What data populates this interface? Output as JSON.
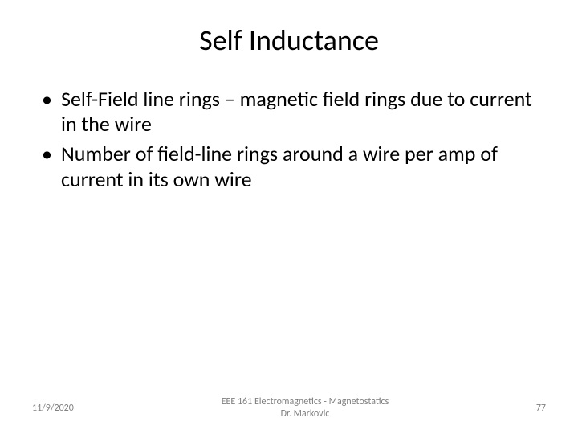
{
  "slide": {
    "title": "Self Inductance",
    "bullets": [
      "Self-Field line rings – magnetic field rings due to current in the wire",
      "Number of field-line rings around a wire per amp of current in its own wire"
    ],
    "footer": {
      "date": "11/9/2020",
      "course_line1": "EEE 161 Electromagnetics - Magnetostatics",
      "course_line2": "Dr. Markovic",
      "page_number": "77"
    }
  },
  "style": {
    "background_color": "#ffffff",
    "text_color": "#000000",
    "footer_color": "#7f7f7f",
    "title_fontsize": 36,
    "body_fontsize": 26,
    "footer_fontsize": 12,
    "font_family": "Calibri"
  }
}
